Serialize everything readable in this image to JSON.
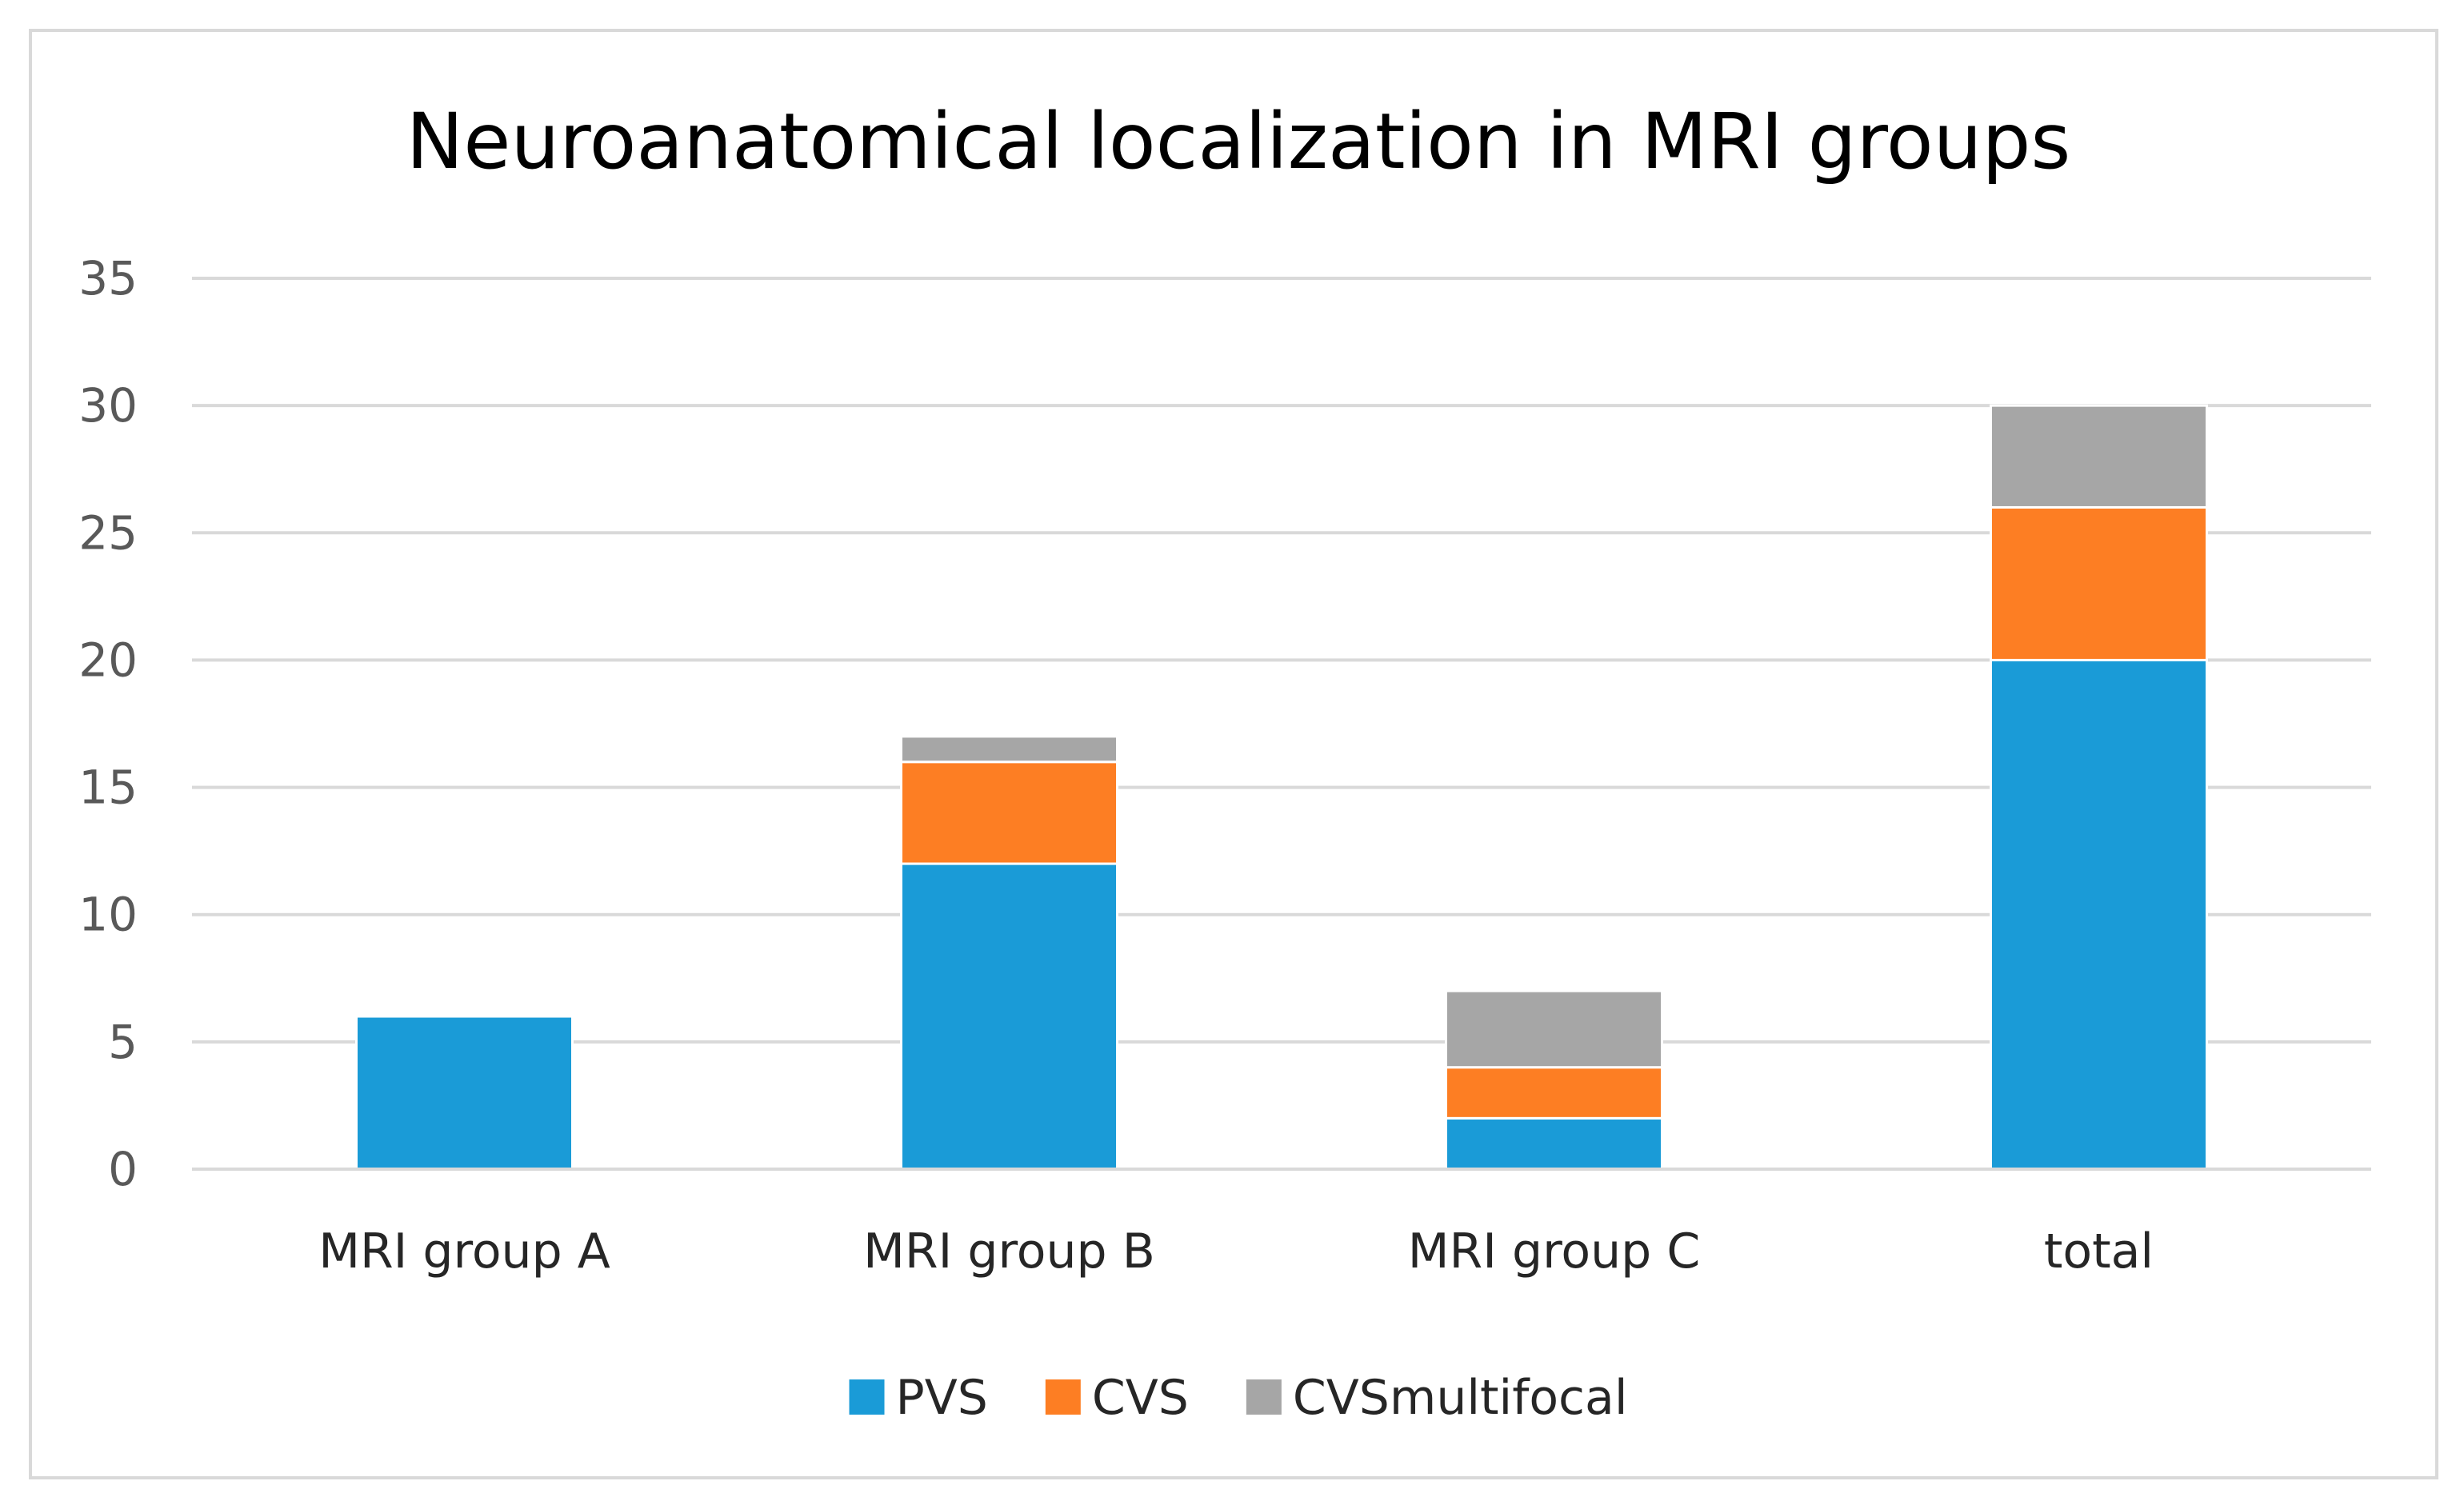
{
  "chart_data": {
    "type": "bar",
    "stacked": true,
    "title": "Neuroanatomical localization in MRI groups",
    "xlabel": "",
    "ylabel": "",
    "categories": [
      "MRI group A",
      "MRI group B",
      "MRI group C",
      "total"
    ],
    "ylim": [
      0,
      35
    ],
    "yticks": [
      0,
      5,
      10,
      15,
      20,
      25,
      30,
      35
    ],
    "grid": true,
    "legend_position": "bottom",
    "series": [
      {
        "name": "PVS",
        "color": "#1a9bd7",
        "values": [
          6,
          12,
          2,
          20
        ]
      },
      {
        "name": "CVS",
        "color": "#fd7e23",
        "values": [
          0,
          4,
          2,
          6
        ]
      },
      {
        "name": "CVSmultifocal",
        "color": "#a6a6a6",
        "values": [
          0,
          1,
          3,
          4
        ]
      }
    ]
  }
}
